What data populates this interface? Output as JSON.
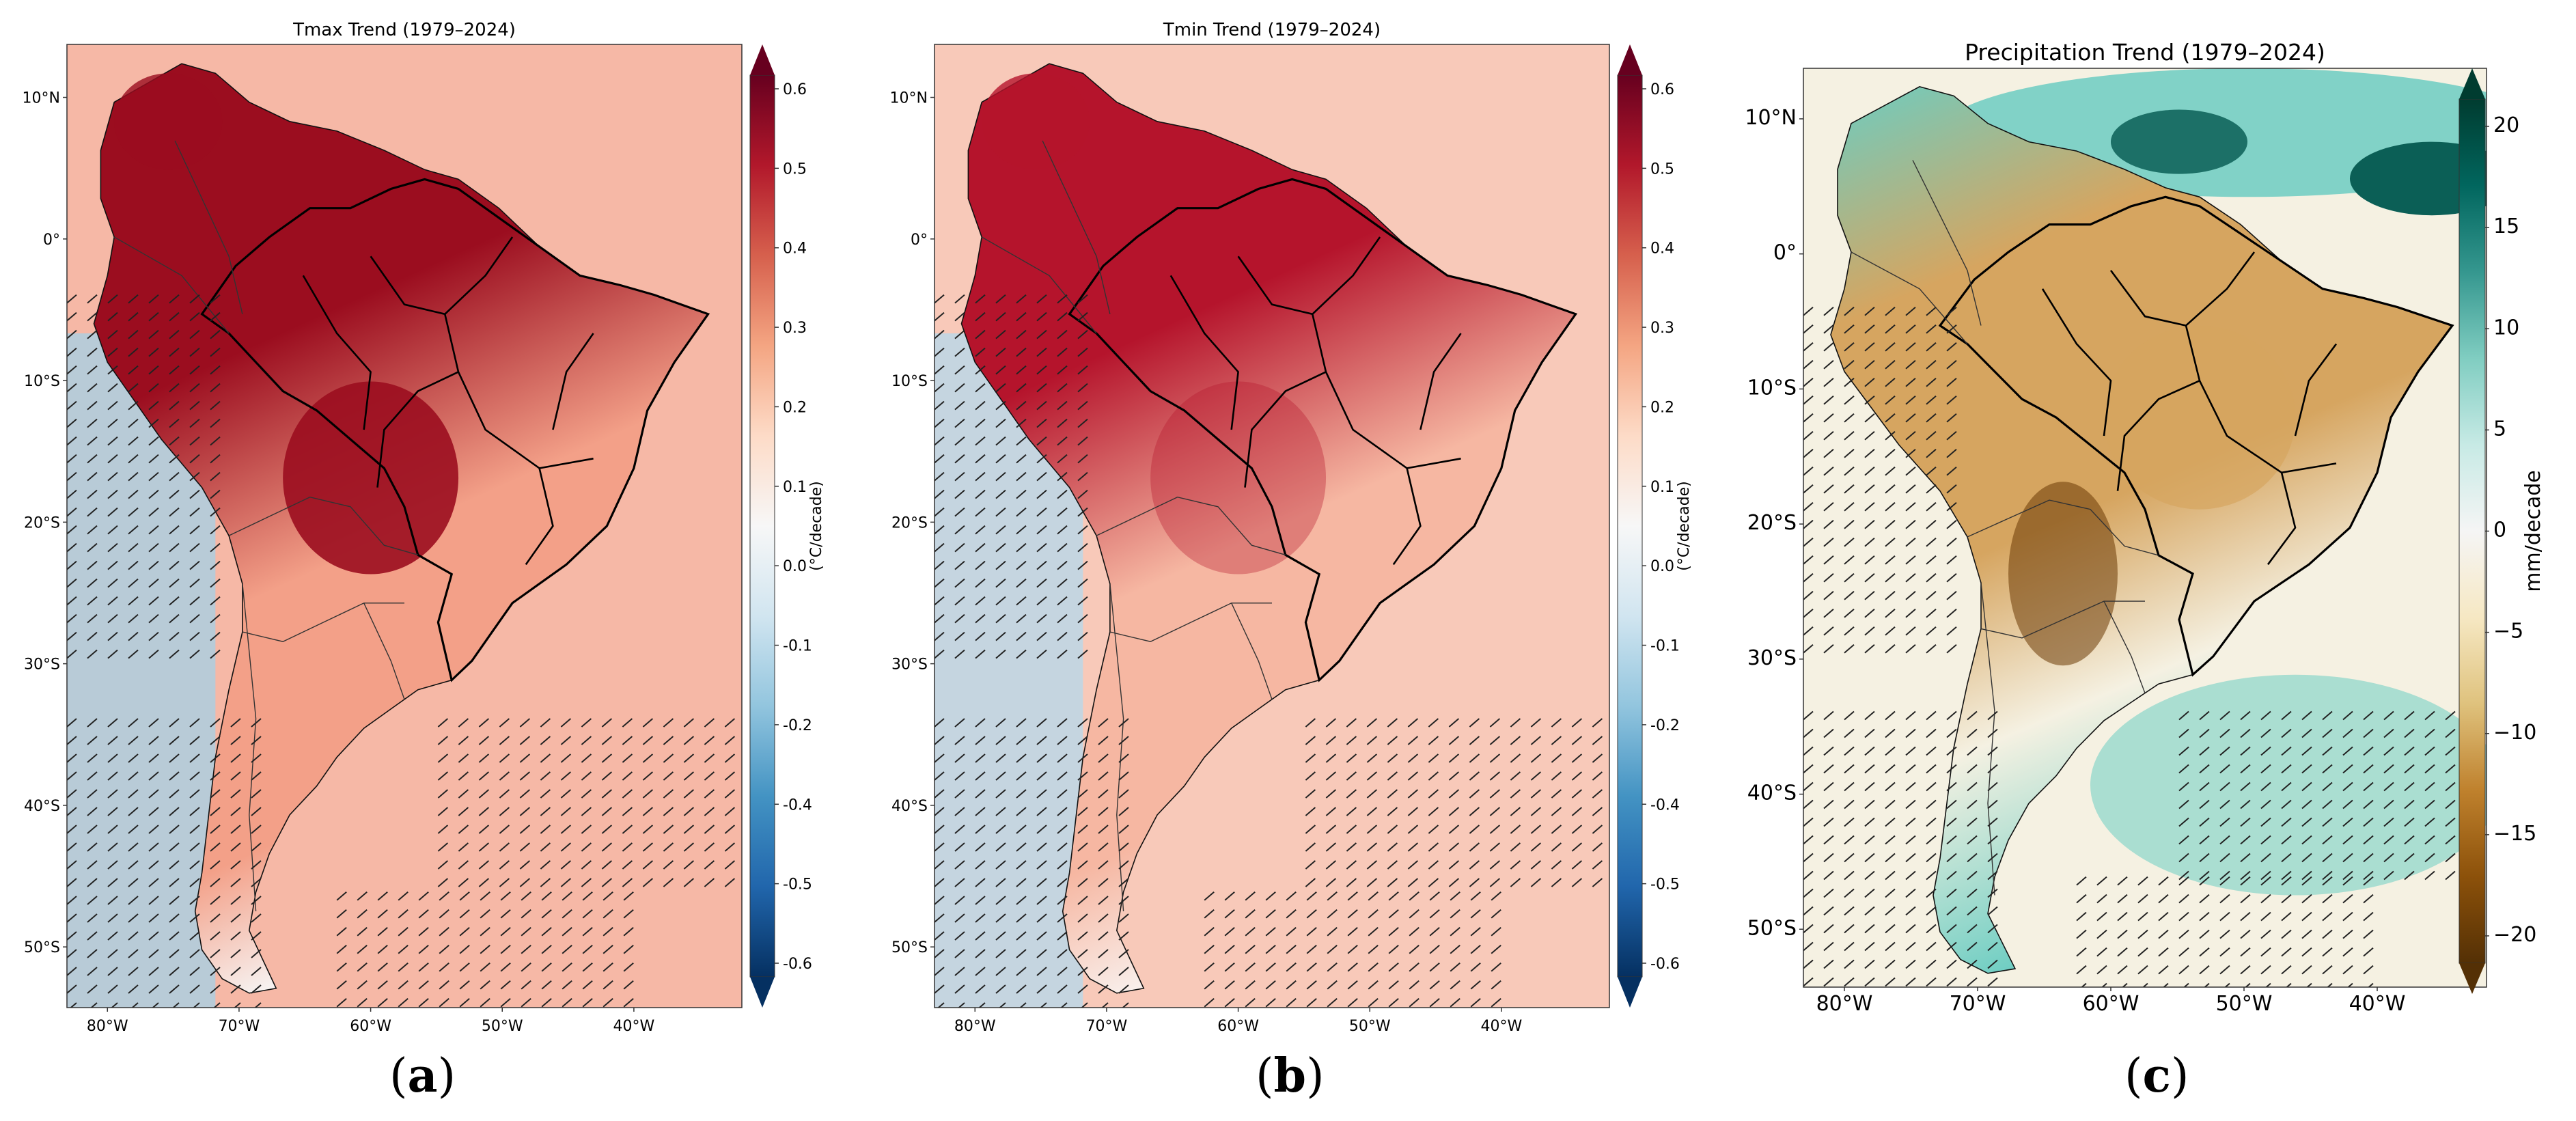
{
  "figure": {
    "panels": [
      {
        "id": "a",
        "title": "Tmax Trend  (1979–2024)",
        "caption_letter": "a",
        "colorbar_label": "(°C/decade)",
        "colorbar_ticks": [
          "0.6",
          "0.5",
          "0.4",
          "0.3",
          "0.2",
          "0.1",
          "0.0",
          "-0.1",
          "-0.2",
          "-0.4",
          "-0.5",
          "-0.6"
        ],
        "colormap": "RdBu_r",
        "colors": {
          "hot": "#9b0d1f",
          "warm": "#f3a088",
          "neutral": "#f7f7f7",
          "cool": "#a9cfe4",
          "cold": "#0b3c6e"
        }
      },
      {
        "id": "b",
        "title": "Tmin Trend  (1979–2024)",
        "caption_letter": "b",
        "colorbar_label": "(°C/decade)",
        "colorbar_ticks": [
          "0.6",
          "0.5",
          "0.4",
          "0.3",
          "0.2",
          "0.1",
          "0.0",
          "-0.1",
          "-0.2",
          "-0.4",
          "-0.5",
          "-0.6"
        ],
        "colormap": "RdBu_r",
        "colors": {
          "hot": "#b5142c",
          "warm": "#f6b7a2",
          "neutral": "#f9f2ef",
          "cool": "#b8d8ea",
          "cold": "#0b3c6e"
        }
      },
      {
        "id": "c",
        "title": "Precipitation Trend (1979–2024)",
        "caption_letter": "c",
        "colorbar_label": "mm/decade",
        "colorbar_ticks": [
          "20",
          "15",
          "10",
          "5",
          "0",
          "−5",
          "−10",
          "−15",
          "−20"
        ],
        "colormap": "BrBG",
        "colors": {
          "wet": "#0b5f56",
          "moist": "#6ccdc2",
          "neutral": "#f5f1e2",
          "dry": "#d6a560",
          "arid": "#6b3a05"
        }
      }
    ],
    "lat_labels": [
      "10°N",
      "0°",
      "10°S",
      "20°S",
      "30°S",
      "40°S",
      "50°S"
    ],
    "lon_labels": [
      "80°W",
      "70°W",
      "60°W",
      "50°W",
      "40°W"
    ],
    "hatching": "non-significant trend areas (hatched)"
  }
}
